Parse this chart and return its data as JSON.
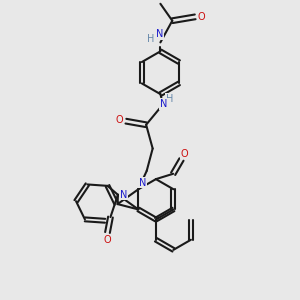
{
  "bg_color": "#e8e8e8",
  "bond_color": "#1a1a1a",
  "N_color": "#1a1acc",
  "O_color": "#cc1111",
  "H_color": "#6688aa",
  "lw": 1.5,
  "fs": 7.0,
  "xlim": [
    0,
    10
  ],
  "ylim": [
    0,
    10
  ]
}
